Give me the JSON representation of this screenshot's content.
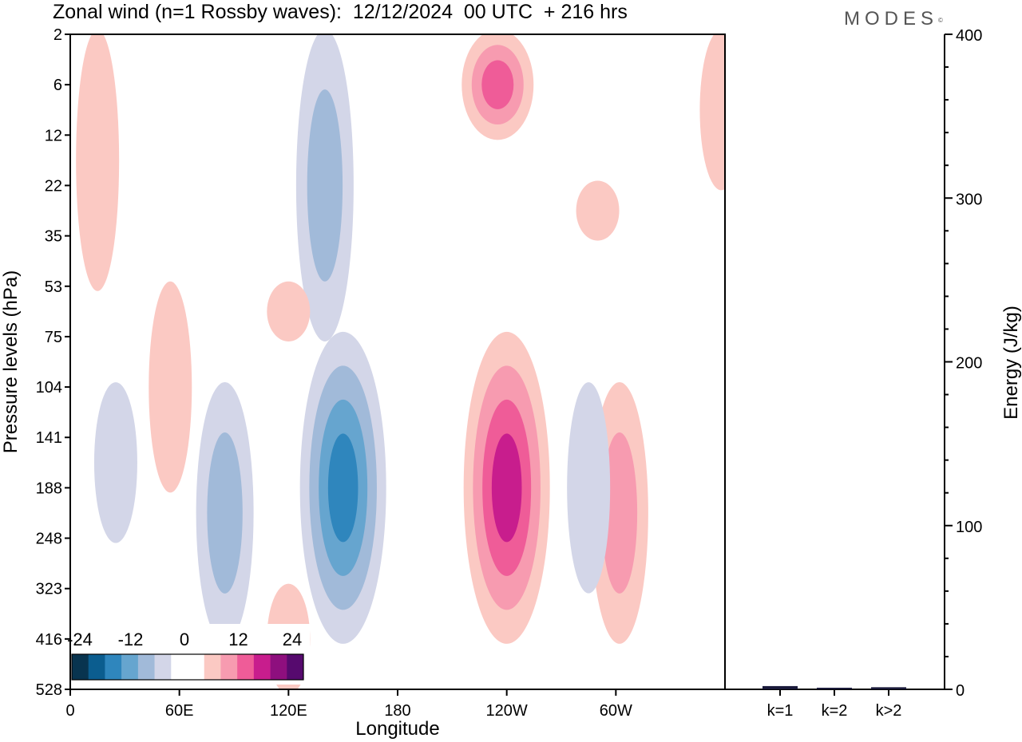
{
  "title": "Zonal wind (n=1 Rossby waves):  12/12/2024  00 UTC  + 216 hrs",
  "logo": "MODES",
  "logo_mark": "©",
  "colors": {
    "blue_levels": [
      "#08344f",
      "#0b5d8f",
      "#2f86bd",
      "#66a5cf",
      "#a1bad9",
      "#d3d6e8"
    ],
    "red_levels": [
      "#fbc9c3",
      "#f79bb0",
      "#ef5c98",
      "#c81d8d",
      "#8e0f7e",
      "#560a6e"
    ],
    "zero": "#ffffff"
  },
  "chart_data": [
    {
      "type": "heatmap",
      "title": "Zonal wind (n=1 Rossby waves):  12/12/2024  00 UTC  + 216 hrs",
      "xlabel": "Longitude",
      "ylabel": "Pressure levels (hPa)",
      "x_ticks": [
        "0",
        "60E",
        "120E",
        "180",
        "120W",
        "60W"
      ],
      "x_range": [
        0,
        360
      ],
      "y_ticks": [
        "2",
        "6",
        "12",
        "22",
        "35",
        "53",
        "75",
        "104",
        "141",
        "188",
        "248",
        "323",
        "416",
        "528"
      ],
      "colorbar": {
        "labels": [
          "-24",
          "-12",
          "0",
          "12",
          "24"
        ],
        "levels": [
          -30,
          -25,
          -20,
          -15,
          -10,
          -5,
          0,
          5,
          10,
          15,
          20,
          25,
          30
        ]
      },
      "features": [
        {
          "sign": "positive",
          "lon": 15,
          "level": "2-53",
          "max": 5
        },
        {
          "sign": "positive",
          "lon": 55,
          "level": "53-188",
          "max": 5
        },
        {
          "sign": "negative",
          "lon": 25,
          "level": "104-248",
          "min": -5
        },
        {
          "sign": "negative",
          "lon": 85,
          "level": "104-416",
          "min": -10
        },
        {
          "sign": "negative",
          "lon": 150,
          "level": "75-416",
          "min": -20
        },
        {
          "sign": "positive",
          "lon": 240,
          "level": "75-416",
          "max": 20
        },
        {
          "sign": "positive",
          "lon": 235,
          "level": "2-12",
          "max": 15
        },
        {
          "sign": "positive",
          "lon": 302,
          "level": "104-416",
          "max": 10
        },
        {
          "sign": "negative",
          "lon": 285,
          "level": "104-323",
          "min": -5
        },
        {
          "sign": "negative",
          "lon": 140,
          "level": "2-75",
          "min": -10
        },
        {
          "sign": "positive",
          "lon": 120,
          "level": "53-75",
          "max": 5
        },
        {
          "sign": "positive",
          "lon": 120,
          "level": "323-528",
          "max": 5
        },
        {
          "sign": "positive",
          "lon": 290,
          "level": "22-35",
          "max": 5
        },
        {
          "sign": "positive",
          "lon": 358,
          "level": "2-22",
          "max": 5
        }
      ]
    },
    {
      "type": "bar",
      "categories": [
        "k=1",
        "k=2",
        "k>2"
      ],
      "values": [
        1.5,
        0.5,
        0.8
      ],
      "ylabel": "Energy (J/kg)",
      "ylim": [
        0,
        400
      ],
      "y_ticks": [
        "0",
        "100",
        "200",
        "300",
        "400"
      ]
    }
  ]
}
